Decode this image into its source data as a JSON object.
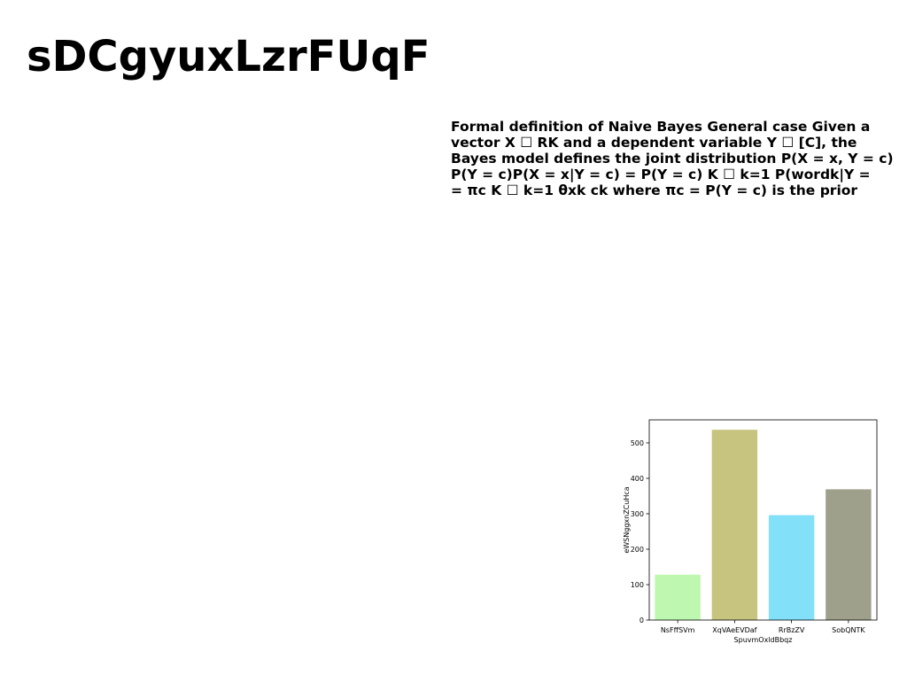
{
  "page": {
    "title": "sDCgyuxLzrFUqF",
    "body_lines": [
      "Formal definition of Naive Bayes General case Given a",
      "vector X ☐ RK and a dependent variable Y ☐ [C], the",
      "Bayes model defines the joint distribution P(X = x, Y = c)",
      "P(Y = c)P(X = x|Y = c) = P(Y = c) K ☐ k=1 P(wordk|Y =",
      "= πc K ☐ k=1 θxk ck where πc = P(Y = c) is the prior"
    ]
  },
  "chart_data": {
    "type": "bar",
    "categories": [
      "NsFffSVm",
      "XqVAeEVDaf",
      "RrBzZV",
      "SobQNTK"
    ],
    "values": [
      128,
      537,
      296,
      369
    ],
    "colors": [
      "#bdf7b0",
      "#c6c47f",
      "#82e0f9",
      "#9ea08b"
    ],
    "title": "",
    "xlabel": "SpuvmOxldBbqz",
    "ylabel": "eWSNggxnZCuHca",
    "ylim": [
      0,
      565
    ],
    "yticks": [
      0,
      100,
      200,
      300,
      400,
      500
    ],
    "grid": false,
    "legend": "none"
  }
}
